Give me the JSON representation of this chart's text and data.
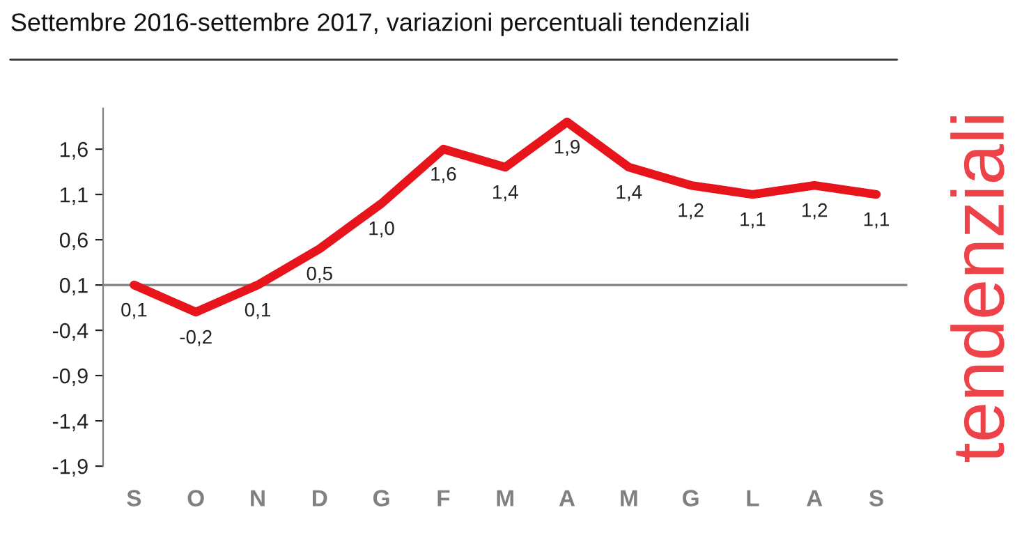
{
  "chart_data": {
    "type": "line",
    "title": "Settembre 2016-settembre 2017, variazioni percentuali tendenziali",
    "categories": [
      "S",
      "O",
      "N",
      "D",
      "G",
      "F",
      "M",
      "A",
      "M",
      "G",
      "L",
      "A",
      "S"
    ],
    "series": [
      {
        "color": "#e8141b",
        "values": [
          0.1,
          -0.2,
          0.1,
          0.5,
          1.0,
          1.6,
          1.4,
          1.9,
          1.4,
          1.2,
          1.1,
          1.2,
          1.1
        ]
      }
    ],
    "value_labels": [
      "0,1",
      "-0,2",
      "0,1",
      "0,5",
      "1,0",
      "1,6",
      "1,4",
      "1,9",
      "1,4",
      "1,2",
      "1,1",
      "1,2",
      "1,1"
    ],
    "ylim": [
      -1.9,
      2.05
    ],
    "yticks": [
      {
        "value": -1.9,
        "label": "-1,9"
      },
      {
        "value": -1.4,
        "label": "-1,4"
      },
      {
        "value": -0.9,
        "label": "-0,9"
      },
      {
        "value": -0.4,
        "label": "-0,4"
      },
      {
        "value": 0.1,
        "label": "0,1"
      },
      {
        "value": 0.6,
        "label": "0,6"
      },
      {
        "value": 1.1,
        "label": "1,1"
      },
      {
        "value": 1.6,
        "label": "1,6"
      }
    ],
    "ref_lines": [
      {
        "axis": "y",
        "value": 0.1,
        "color": "#808080"
      }
    ],
    "annotations": [
      "tendenziali"
    ],
    "grid": false,
    "legend": false,
    "marker": "none",
    "line_style": "solid"
  }
}
